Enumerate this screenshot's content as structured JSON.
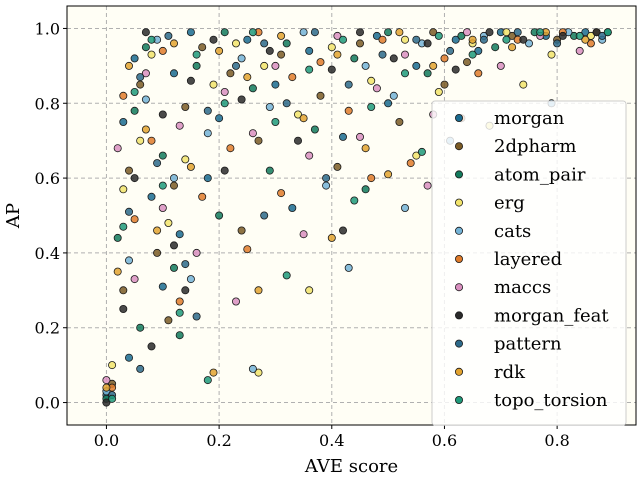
{
  "chart_data": {
    "type": "scatter",
    "xlabel": "AVE score",
    "ylabel": "AP",
    "xlim": [
      -0.07,
      0.94
    ],
    "ylim": [
      -0.06,
      1.06
    ],
    "xticks": [
      "0.0",
      "0.2",
      "0.4",
      "0.6",
      "0.8"
    ],
    "yticks": [
      "0.0",
      "0.2",
      "0.4",
      "0.6",
      "0.8",
      "1.0"
    ],
    "grid": true,
    "legend_position": "right",
    "plot_background": "#fffef5",
    "series": [
      {
        "name": "morgan",
        "color": "#1a6b8f",
        "points": [
          [
            0.0,
            0.02
          ],
          [
            0.03,
            0.75
          ],
          [
            0.05,
            0.92
          ],
          [
            0.08,
            0.55
          ],
          [
            0.1,
            0.31
          ],
          [
            0.12,
            0.88
          ],
          [
            0.15,
            0.99
          ],
          [
            0.2,
            0.76
          ],
          [
            0.25,
            0.97
          ],
          [
            0.3,
            0.85
          ],
          [
            0.36,
            0.94
          ],
          [
            0.42,
            0.71
          ],
          [
            0.48,
            0.98
          ],
          [
            0.55,
            0.9
          ],
          [
            0.62,
            0.97
          ],
          [
            0.7,
            0.99
          ],
          [
            0.78,
            0.98
          ],
          [
            0.85,
            0.99
          ],
          [
            0.04,
            0.12
          ],
          [
            0.13,
            0.45
          ],
          [
            0.18,
            0.6
          ],
          [
            0.33,
            0.52
          ],
          [
            0.5,
            0.8
          ],
          [
            0.66,
            0.94
          ]
        ]
      },
      {
        "name": "2dpharm",
        "color": "#7a5a24",
        "points": [
          [
            0.01,
            0.05
          ],
          [
            0.04,
            0.62
          ],
          [
            0.06,
            0.85
          ],
          [
            0.09,
            0.4
          ],
          [
            0.11,
            0.22
          ],
          [
            0.14,
            0.79
          ],
          [
            0.17,
            0.95
          ],
          [
            0.22,
            0.88
          ],
          [
            0.27,
            0.7
          ],
          [
            0.31,
            0.93
          ],
          [
            0.38,
            0.82
          ],
          [
            0.45,
            0.96
          ],
          [
            0.52,
            0.75
          ],
          [
            0.58,
            0.99
          ],
          [
            0.64,
            0.91
          ],
          [
            0.72,
            0.98
          ],
          [
            0.8,
            0.97
          ],
          [
            0.87,
            0.99
          ],
          [
            0.03,
            0.3
          ],
          [
            0.12,
            0.58
          ],
          [
            0.24,
            0.46
          ],
          [
            0.41,
            0.63
          ],
          [
            0.6,
            0.85
          ]
        ]
      },
      {
        "name": "atom_pair",
        "color": "#127a5c",
        "points": [
          [
            0.0,
            0.01
          ],
          [
            0.02,
            0.44
          ],
          [
            0.05,
            0.78
          ],
          [
            0.07,
            0.95
          ],
          [
            0.1,
            0.66
          ],
          [
            0.13,
            0.18
          ],
          [
            0.16,
            0.9
          ],
          [
            0.21,
            0.99
          ],
          [
            0.26,
            0.84
          ],
          [
            0.32,
            0.96
          ],
          [
            0.37,
            0.73
          ],
          [
            0.44,
            0.92
          ],
          [
            0.5,
            0.99
          ],
          [
            0.57,
            0.88
          ],
          [
            0.63,
            0.98
          ],
          [
            0.69,
            0.95
          ],
          [
            0.76,
            0.99
          ],
          [
            0.83,
            0.98
          ],
          [
            0.89,
            0.99
          ],
          [
            0.06,
            0.2
          ],
          [
            0.12,
            0.36
          ],
          [
            0.2,
            0.5
          ],
          [
            0.29,
            0.62
          ],
          [
            0.46,
            0.57
          ]
        ]
      },
      {
        "name": "erg",
        "color": "#f2e46b",
        "points": [
          [
            0.01,
            0.1
          ],
          [
            0.03,
            0.57
          ],
          [
            0.06,
            0.7
          ],
          [
            0.08,
            0.93
          ],
          [
            0.11,
            0.48
          ],
          [
            0.14,
            0.65
          ],
          [
            0.19,
            0.85
          ],
          [
            0.23,
            0.96
          ],
          [
            0.28,
            0.9
          ],
          [
            0.34,
            0.77
          ],
          [
            0.4,
            0.95
          ],
          [
            0.47,
            0.86
          ],
          [
            0.53,
            0.97
          ],
          [
            0.59,
            0.83
          ],
          [
            0.65,
            0.96
          ],
          [
            0.71,
            0.99
          ],
          [
            0.79,
            0.93
          ],
          [
            0.86,
            0.98
          ],
          [
            0.27,
            0.08
          ],
          [
            0.36,
            0.3
          ],
          [
            0.55,
            0.66
          ],
          [
            0.68,
            0.74
          ],
          [
            0.74,
            0.85
          ]
        ]
      },
      {
        "name": "cats",
        "color": "#74b3d6",
        "points": [
          [
            0.0,
            0.03
          ],
          [
            0.04,
            0.38
          ],
          [
            0.07,
            0.81
          ],
          [
            0.09,
            0.97
          ],
          [
            0.12,
            0.6
          ],
          [
            0.15,
            0.33
          ],
          [
            0.18,
            0.72
          ],
          [
            0.24,
            0.92
          ],
          [
            0.29,
            0.79
          ],
          [
            0.35,
            0.99
          ],
          [
            0.39,
            0.58
          ],
          [
            0.46,
            0.9
          ],
          [
            0.51,
            0.82
          ],
          [
            0.56,
            0.96
          ],
          [
            0.61,
            0.7
          ],
          [
            0.67,
            0.98
          ],
          [
            0.75,
            0.96
          ],
          [
            0.82,
            0.99
          ],
          [
            0.88,
            0.97
          ],
          [
            0.26,
            0.09
          ],
          [
            0.43,
            0.36
          ],
          [
            0.53,
            0.52
          ],
          [
            0.79,
            0.8
          ]
        ]
      },
      {
        "name": "layered",
        "color": "#e07b2a",
        "points": [
          [
            0.01,
            0.04
          ],
          [
            0.03,
            0.82
          ],
          [
            0.05,
            0.49
          ],
          [
            0.08,
            0.7
          ],
          [
            0.1,
            0.94
          ],
          [
            0.13,
            0.27
          ],
          [
            0.17,
            0.55
          ],
          [
            0.22,
            0.68
          ],
          [
            0.27,
            0.99
          ],
          [
            0.33,
            0.87
          ],
          [
            0.38,
            0.91
          ],
          [
            0.43,
            0.78
          ],
          [
            0.49,
            0.97
          ],
          [
            0.54,
            0.64
          ],
          [
            0.6,
            0.92
          ],
          [
            0.66,
            0.88
          ],
          [
            0.73,
            0.97
          ],
          [
            0.81,
            0.99
          ],
          [
            0.86,
            0.96
          ],
          [
            0.25,
            0.41
          ],
          [
            0.31,
            0.56
          ],
          [
            0.47,
            0.6
          ],
          [
            0.63,
            0.76
          ]
        ]
      },
      {
        "name": "maccs",
        "color": "#d98fbf",
        "points": [
          [
            0.0,
            0.06
          ],
          [
            0.02,
            0.68
          ],
          [
            0.05,
            0.33
          ],
          [
            0.07,
            0.88
          ],
          [
            0.1,
            0.52
          ],
          [
            0.13,
            0.74
          ],
          [
            0.16,
            0.4
          ],
          [
            0.21,
            0.83
          ],
          [
            0.26,
            0.72
          ],
          [
            0.3,
            0.9
          ],
          [
            0.36,
            0.66
          ],
          [
            0.41,
            0.98
          ],
          [
            0.48,
            0.84
          ],
          [
            0.53,
            0.93
          ],
          [
            0.58,
            0.77
          ],
          [
            0.64,
            0.99
          ],
          [
            0.7,
            0.9
          ],
          [
            0.77,
            0.98
          ],
          [
            0.84,
            0.94
          ],
          [
            0.23,
            0.27
          ],
          [
            0.35,
            0.45
          ],
          [
            0.45,
            0.71
          ],
          [
            0.57,
            0.58
          ]
        ]
      },
      {
        "name": "morgan_feat",
        "color": "#2a2a2a",
        "points": [
          [
            0.0,
            0.0
          ],
          [
            0.03,
            0.25
          ],
          [
            0.05,
            0.6
          ],
          [
            0.07,
            0.99
          ],
          [
            0.1,
            0.77
          ],
          [
            0.12,
            0.42
          ],
          [
            0.15,
            0.86
          ],
          [
            0.19,
            0.97
          ],
          [
            0.24,
            0.81
          ],
          [
            0.29,
            0.94
          ],
          [
            0.34,
            0.7
          ],
          [
            0.4,
            0.89
          ],
          [
            0.45,
            0.99
          ],
          [
            0.51,
            0.92
          ],
          [
            0.57,
            0.96
          ],
          [
            0.62,
            0.89
          ],
          [
            0.68,
            0.99
          ],
          [
            0.74,
            0.97
          ],
          [
            0.81,
            0.98
          ],
          [
            0.87,
            0.99
          ],
          [
            0.08,
            0.15
          ],
          [
            0.14,
            0.3
          ],
          [
            0.21,
            0.62
          ],
          [
            0.42,
            0.46
          ]
        ]
      },
      {
        "name": "pattern",
        "color": "#2d6a8a",
        "points": [
          [
            0.01,
            0.02
          ],
          [
            0.04,
            0.51
          ],
          [
            0.06,
            0.87
          ],
          [
            0.09,
            0.64
          ],
          [
            0.11,
            0.98
          ],
          [
            0.14,
            0.37
          ],
          [
            0.18,
            0.78
          ],
          [
            0.23,
            0.9
          ],
          [
            0.28,
            0.96
          ],
          [
            0.32,
            0.8
          ],
          [
            0.37,
            0.99
          ],
          [
            0.43,
            0.85
          ],
          [
            0.49,
            0.93
          ],
          [
            0.55,
            0.97
          ],
          [
            0.61,
            0.94
          ],
          [
            0.67,
            0.97
          ],
          [
            0.73,
            0.99
          ],
          [
            0.8,
            0.96
          ],
          [
            0.88,
            0.98
          ],
          [
            0.06,
            0.09
          ],
          [
            0.16,
            0.23
          ],
          [
            0.28,
            0.5
          ],
          [
            0.39,
            0.6
          ]
        ]
      },
      {
        "name": "rdk",
        "color": "#e3a32f",
        "points": [
          [
            0.0,
            0.04
          ],
          [
            0.02,
            0.35
          ],
          [
            0.04,
            0.9
          ],
          [
            0.07,
            0.73
          ],
          [
            0.09,
            0.46
          ],
          [
            0.12,
            0.96
          ],
          [
            0.15,
            0.63
          ],
          [
            0.2,
            0.94
          ],
          [
            0.25,
            0.87
          ],
          [
            0.31,
            0.98
          ],
          [
            0.35,
            0.76
          ],
          [
            0.41,
            0.93
          ],
          [
            0.46,
            0.68
          ],
          [
            0.52,
            0.99
          ],
          [
            0.58,
            0.9
          ],
          [
            0.65,
            0.97
          ],
          [
            0.72,
            0.95
          ],
          [
            0.78,
            0.99
          ],
          [
            0.85,
            0.97
          ],
          [
            0.19,
            0.08
          ],
          [
            0.27,
            0.3
          ],
          [
            0.4,
            0.44
          ],
          [
            0.5,
            0.61
          ]
        ]
      },
      {
        "name": "topo_torsion",
        "color": "#1f9a7a",
        "points": [
          [
            0.01,
            0.01
          ],
          [
            0.03,
            0.47
          ],
          [
            0.05,
            0.83
          ],
          [
            0.08,
            0.97
          ],
          [
            0.1,
            0.58
          ],
          [
            0.13,
            0.24
          ],
          [
            0.16,
            0.93
          ],
          [
            0.21,
            0.8
          ],
          [
            0.26,
            0.99
          ],
          [
            0.3,
            0.75
          ],
          [
            0.36,
            0.89
          ],
          [
            0.42,
            0.97
          ],
          [
            0.47,
            0.79
          ],
          [
            0.53,
            0.88
          ],
          [
            0.59,
            0.98
          ],
          [
            0.65,
            0.93
          ],
          [
            0.71,
            0.97
          ],
          [
            0.77,
            0.99
          ],
          [
            0.84,
            0.98
          ],
          [
            0.89,
            0.99
          ],
          [
            0.18,
            0.06
          ],
          [
            0.32,
            0.34
          ],
          [
            0.44,
            0.54
          ],
          [
            0.56,
            0.67
          ]
        ]
      }
    ]
  }
}
